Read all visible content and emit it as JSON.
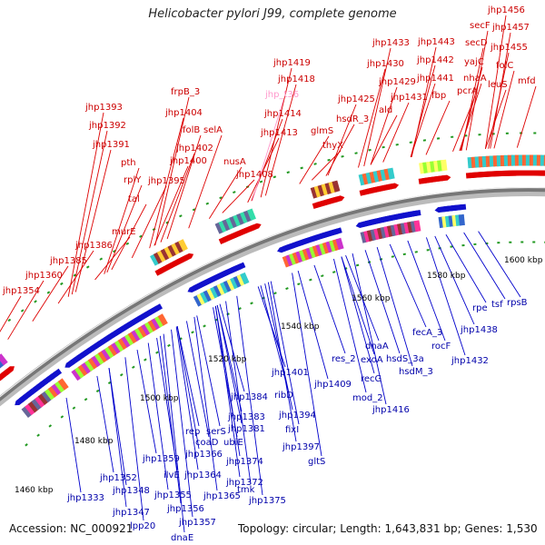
{
  "title": "Helicobacter pylori J99, complete genome",
  "footer": {
    "accession": "Accession: NC_000921",
    "summary": "Topology: circular; Length: 1,643,831 bp; Genes: 1,530"
  },
  "colors": {
    "forward_label": "#cc0000",
    "reverse_label": "#0000aa",
    "trna_label": "#ff99cc",
    "backbone": "#888888"
  },
  "kbp_labels": [
    "1460 kbp",
    "1480 kbp",
    "1500 kbp",
    "1520 kbp",
    "1540 kbp",
    "1560 kbp",
    "1580 kbp",
    "1600 kbp"
  ],
  "red_labels": [
    "jhp1354",
    "jhp1360",
    "jhp1385",
    "jhp1386",
    "murE",
    "tal",
    "rplY",
    "pth",
    "jhp1391",
    "jhp1392",
    "jhp1393",
    "jhp1395",
    "jhp1400",
    "jhp1402",
    "folB",
    "selA",
    "jhp1404",
    "frpB_3",
    "nusA",
    "jhp1408",
    "jhp1413",
    "jhp1414",
    "jhp1418",
    "jhp1419",
    "glmS",
    "thyX",
    "hsdR_3",
    "jhp1425",
    "ald",
    "jhp1431",
    "jhp1429",
    "jhp1430",
    "jhp1433",
    "fbp",
    "jhp1441",
    "jhp1442",
    "jhp1443",
    "pcrA",
    "nhaA",
    "yajC",
    "secD",
    "secF",
    "leuS",
    "folC",
    "jhp1455",
    "jhp1457",
    "jhp1456",
    "mfd"
  ],
  "pink_labels": [
    "jhp_t36"
  ],
  "blue_labels": [
    "jhp1333",
    "jhp1347",
    "jhp1348",
    "lpp20",
    "dnaE",
    "jhp1352",
    "jhp1355",
    "jhp1356",
    "jhp1357",
    "jhp1359",
    "ilvE",
    "jhp1364",
    "jhp1365",
    "jhp1366",
    "coaD",
    "rep",
    "serS",
    "ubiE",
    "tmk",
    "jhp1372",
    "jhp1374",
    "jhp1375",
    "jhp1381",
    "jhp1383",
    "jhp1384",
    "ribD",
    "jhp1394",
    "fixI",
    "jhp1397",
    "gltS",
    "jhp1401",
    "jhp1409",
    "res_2",
    "exoA",
    "recG",
    "mod_2",
    "dnaA",
    "jhp1416",
    "hsdS_3a",
    "hsdM_3",
    "fecA_3",
    "rocF",
    "jhp1432",
    "jhp1438",
    "rpe",
    "tsf",
    "rpsB"
  ]
}
